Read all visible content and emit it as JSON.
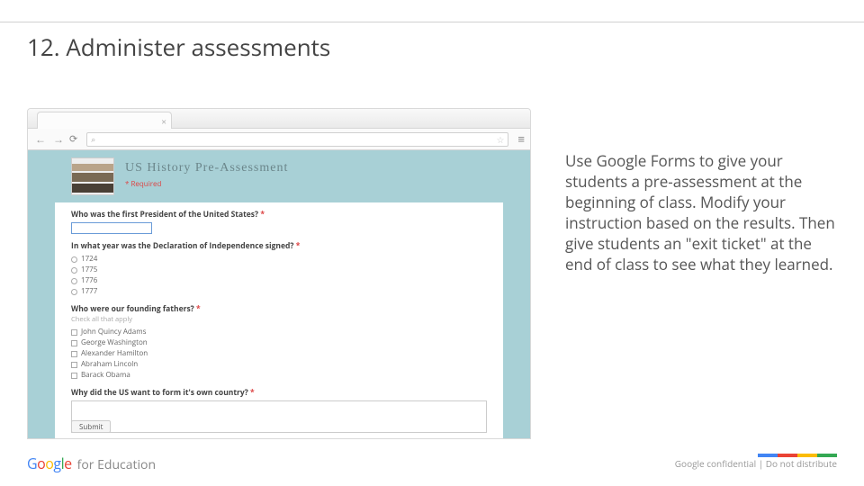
{
  "title": "12. Administer assessments",
  "browser": {
    "tab_close": "×",
    "back": "←",
    "forward": "→",
    "reload": "⟳",
    "search_icon": "⌕",
    "star": "☆",
    "menu": "≡"
  },
  "form": {
    "title": "US History Pre-Assessment",
    "required": "* Required",
    "q1": {
      "label": "Who was the first President of the United States?",
      "ast": "*"
    },
    "q2": {
      "label": "In what year was the Declaration of Independence signed?",
      "ast": "*",
      "options": [
        "1724",
        "1775",
        "1776",
        "1777"
      ]
    },
    "q3": {
      "label": "Who were our founding fathers?",
      "ast": "*",
      "hint": "Check all that apply",
      "options": [
        "John Quincy Adams",
        "George Washington",
        "Alexander Hamilton",
        "Abraham Lincoln",
        "Barack Obama"
      ]
    },
    "q4": {
      "label": "Why did the US want to form it's own country?",
      "ast": "*"
    },
    "submit": "Submit"
  },
  "body_text": "Use Google Forms to give your students a pre-assessment at the beginning of class. Modify your instruction based on the results. Then give students an \"exit ticket\" at the end of class to see what they learned.",
  "footer": {
    "for_education": "for Education",
    "confidential": "Google confidential | Do not distribute"
  },
  "strip_colors": [
    "#4285f4",
    "#ea4335",
    "#fbbc05",
    "#34a853"
  ],
  "banner_bg": "#a8d0d6"
}
